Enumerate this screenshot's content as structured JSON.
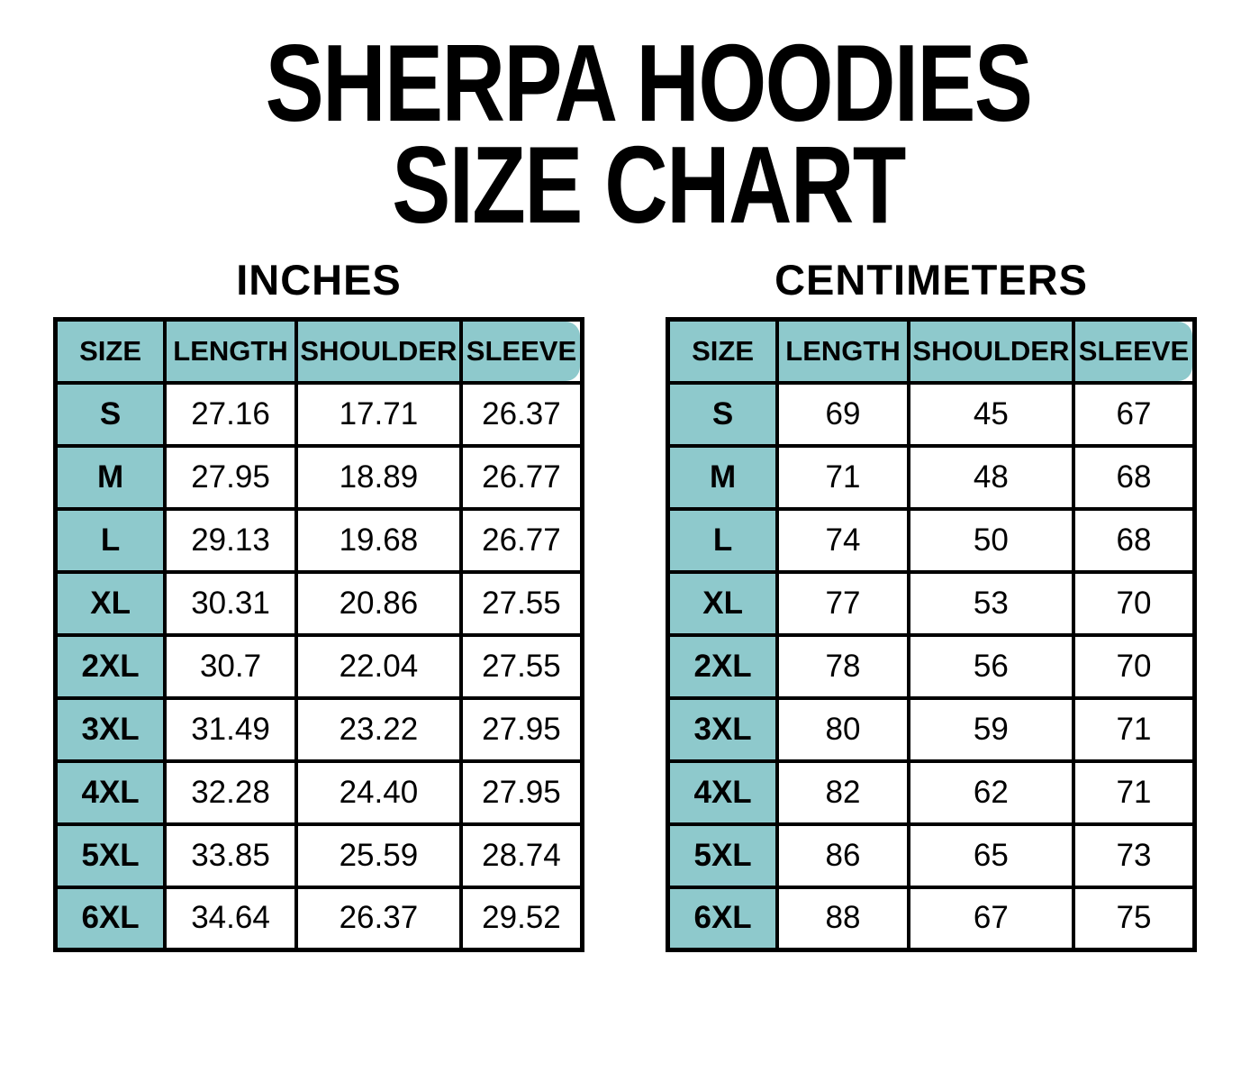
{
  "title": {
    "line1": "SHERPA HOODIES",
    "line2": "SIZE CHART"
  },
  "colors": {
    "header_teal": "#8EC9CC",
    "border_black": "#000000",
    "background": "#FFFFFF"
  },
  "chart_data": [
    {
      "type": "table",
      "title": "INCHES",
      "columns": [
        "SIZE",
        "LENGTH",
        "SHOULDER",
        "SLEEVE"
      ],
      "rows": [
        {
          "size": "S",
          "length": "27.16",
          "shoulder": "17.71",
          "sleeve": "26.37"
        },
        {
          "size": "M",
          "length": "27.95",
          "shoulder": "18.89",
          "sleeve": "26.77"
        },
        {
          "size": "L",
          "length": "29.13",
          "shoulder": "19.68",
          "sleeve": "26.77"
        },
        {
          "size": "XL",
          "length": "30.31",
          "shoulder": "20.86",
          "sleeve": "27.55"
        },
        {
          "size": "2XL",
          "length": "30.7",
          "shoulder": "22.04",
          "sleeve": "27.55"
        },
        {
          "size": "3XL",
          "length": "31.49",
          "shoulder": "23.22",
          "sleeve": "27.95"
        },
        {
          "size": "4XL",
          "length": "32.28",
          "shoulder": "24.40",
          "sleeve": "27.95"
        },
        {
          "size": "5XL",
          "length": "33.85",
          "shoulder": "25.59",
          "sleeve": "28.74"
        },
        {
          "size": "6XL",
          "length": "34.64",
          "shoulder": "26.37",
          "sleeve": "29.52"
        }
      ]
    },
    {
      "type": "table",
      "title": "CENTIMETERS",
      "columns": [
        "SIZE",
        "LENGTH",
        "SHOULDER",
        "SLEEVE"
      ],
      "rows": [
        {
          "size": "S",
          "length": "69",
          "shoulder": "45",
          "sleeve": "67"
        },
        {
          "size": "M",
          "length": "71",
          "shoulder": "48",
          "sleeve": "68"
        },
        {
          "size": "L",
          "length": "74",
          "shoulder": "50",
          "sleeve": "68"
        },
        {
          "size": "XL",
          "length": "77",
          "shoulder": "53",
          "sleeve": "70"
        },
        {
          "size": "2XL",
          "length": "78",
          "shoulder": "56",
          "sleeve": "70"
        },
        {
          "size": "3XL",
          "length": "80",
          "shoulder": "59",
          "sleeve": "71"
        },
        {
          "size": "4XL",
          "length": "82",
          "shoulder": "62",
          "sleeve": "71"
        },
        {
          "size": "5XL",
          "length": "86",
          "shoulder": "65",
          "sleeve": "73"
        },
        {
          "size": "6XL",
          "length": "88",
          "shoulder": "67",
          "sleeve": "75"
        }
      ]
    }
  ]
}
